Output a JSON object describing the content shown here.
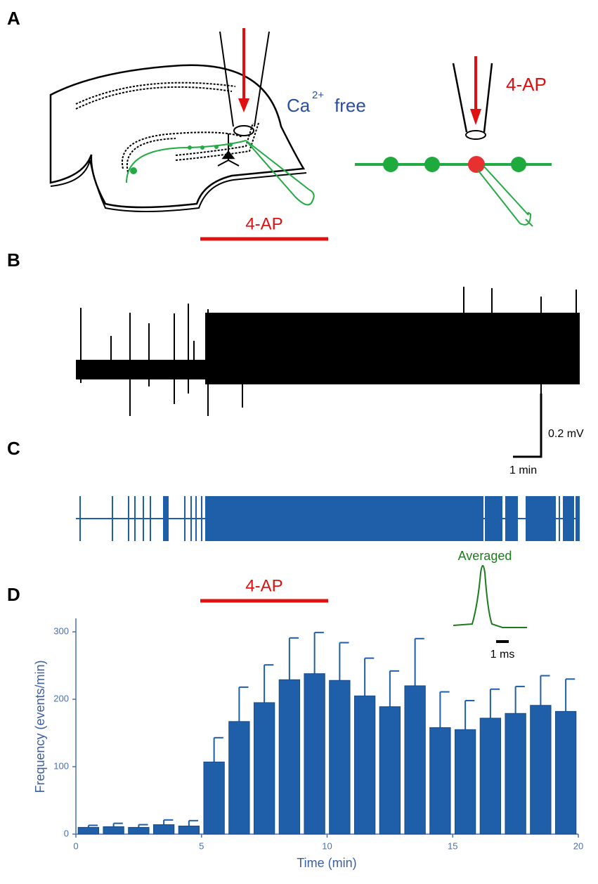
{
  "panels": {
    "a": "A",
    "b": "B",
    "c": "C",
    "d": "D"
  },
  "panel_a": {
    "label_ca": "Ca",
    "label_ca_sup": "2+",
    "label_free": "free",
    "drug_right": "4-AP",
    "drug_bar": "4-AP"
  },
  "panel_b": {
    "scale_v": "0.2 mV",
    "scale_t": "1 min"
  },
  "panel_d_inset": {
    "title": "Averaged",
    "scale_t": "1 ms"
  },
  "chart_data": {
    "type": "bar",
    "annotation": "4-AP",
    "xlabel": "Time (min)",
    "ylabel": "Frequency (events/min)",
    "x": [
      0.5,
      1.5,
      2.5,
      3.5,
      4.5,
      5.5,
      6.5,
      7.5,
      8.5,
      9.5,
      10.5,
      11.5,
      12.5,
      13.5,
      14.5,
      15.5,
      16.5,
      17.5,
      18.5,
      19.5
    ],
    "values": [
      10,
      11,
      10,
      14,
      12,
      107,
      167,
      195,
      229,
      238,
      228,
      205,
      189,
      220,
      158,
      155,
      172,
      179,
      191,
      182
    ],
    "errors": [
      3,
      5,
      4,
      7,
      8,
      36,
      51,
      56,
      62,
      61,
      56,
      56,
      53,
      70,
      53,
      43,
      43,
      40,
      44,
      48
    ],
    "color": "#1f5ea8",
    "xlim": [
      0,
      20
    ],
    "xticks": [
      0,
      5,
      10,
      15,
      20
    ],
    "ylim": [
      0,
      320
    ],
    "yticks": [
      0,
      100,
      200,
      300
    ]
  }
}
